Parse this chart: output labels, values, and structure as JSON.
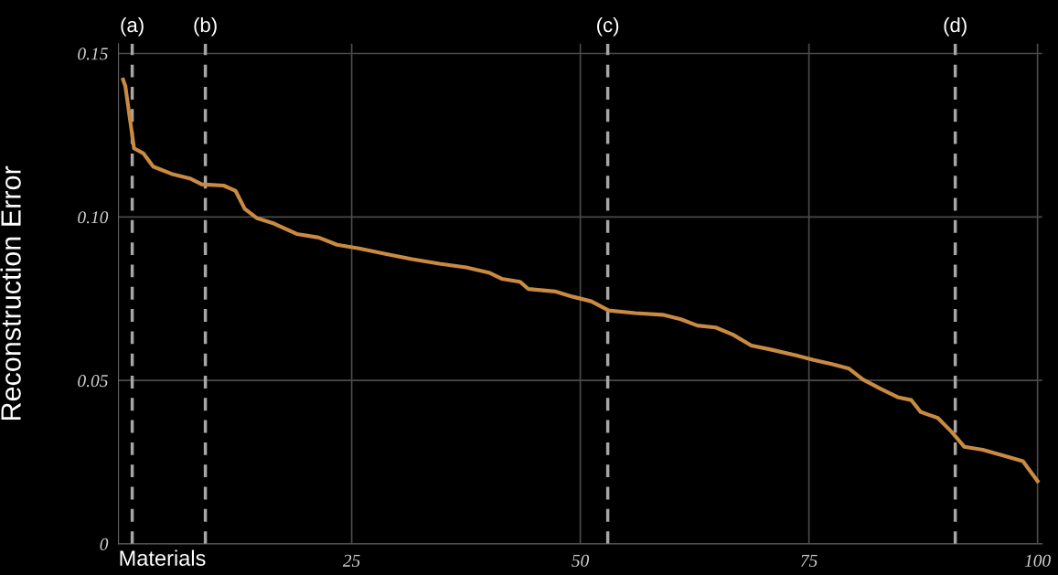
{
  "chart_data": {
    "type": "line",
    "xlabel": "Materials",
    "ylabel": "Reconstruction Error",
    "x": [
      0,
      0.25,
      1.2,
      2.2,
      3.3,
      5.3,
      7.3,
      8.6,
      11,
      12.3,
      13.3,
      14.6,
      16.5,
      19,
      21.4,
      23.4,
      25.8,
      28.7,
      31.6,
      34.6,
      37.5,
      40,
      41.4,
      43.4,
      44.3,
      47.3,
      49.2,
      51.2,
      53.1,
      56,
      59,
      61,
      62.8,
      64.8,
      66.7,
      68.7,
      70.6,
      73.6,
      75.5,
      77.5,
      79.4,
      80.9,
      82.8,
      84.8,
      86.2,
      87.2,
      89.1,
      90.6,
      92,
      94,
      96.4,
      98.4,
      100
    ],
    "series": [
      {
        "color": "#c98a42",
        "values": [
          0.142,
          0.14,
          0.121,
          0.1195,
          0.1154,
          0.1132,
          0.1118,
          0.11,
          0.1096,
          0.108,
          0.1025,
          0.0997,
          0.098,
          0.0948,
          0.0937,
          0.0915,
          0.0904,
          0.0887,
          0.0871,
          0.0857,
          0.0846,
          0.083,
          0.0811,
          0.0802,
          0.078,
          0.0772,
          0.0756,
          0.0742,
          0.0714,
          0.0706,
          0.0701,
          0.0687,
          0.0668,
          0.0662,
          0.064,
          0.0607,
          0.0596,
          0.0577,
          0.0563,
          0.055,
          0.0536,
          0.0503,
          0.0475,
          0.0448,
          0.044,
          0.0404,
          0.0385,
          0.0343,
          0.0297,
          0.0288,
          0.0269,
          0.0253,
          0.0192
        ]
      }
    ],
    "xlim": [
      -0.5,
      100.5
    ],
    "xticks": [
      25,
      50,
      75,
      100
    ],
    "ylim": [
      0,
      0.153
    ],
    "yticks": [
      0,
      0.05,
      {
        "value": 0.1,
        "label": "0.10"
      },
      0.15
    ],
    "grid": true,
    "marker": "none",
    "line_style": "solid",
    "ref_lines": [
      {
        "axis": "x",
        "value": 1,
        "label": "(a)",
        "color": "#a6a6a6",
        "line_style": "dashed"
      },
      {
        "axis": "x",
        "value": 9,
        "label": "(b)",
        "color": "#a6a6a6",
        "line_style": "dashed"
      },
      {
        "axis": "x",
        "value": 53,
        "label": "(c)",
        "color": "#a6a6a6",
        "line_style": "dashed"
      },
      {
        "axis": "x",
        "value": 91,
        "label": "(d)",
        "color": "#a6a6a6",
        "line_style": "dashed"
      }
    ]
  }
}
